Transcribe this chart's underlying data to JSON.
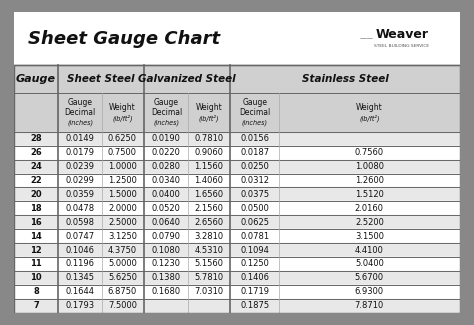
{
  "title": "Sheet Gauge Chart",
  "gauges": [
    28,
    26,
    24,
    22,
    20,
    18,
    16,
    14,
    12,
    11,
    10,
    8,
    7
  ],
  "sheet_steel": {
    "label": "Sheet Steel",
    "decimal": [
      "0.0149",
      "0.0179",
      "0.0239",
      "0.0299",
      "0.0359",
      "0.0478",
      "0.0598",
      "0.0747",
      "0.1046",
      "0.1196",
      "0.1345",
      "0.1644",
      "0.1793"
    ],
    "weight": [
      "0.6250",
      "0.7500",
      "1.0000",
      "1.2500",
      "1.5000",
      "2.0000",
      "2.5000",
      "3.1250",
      "4.3750",
      "5.0000",
      "5.6250",
      "6.8750",
      "7.5000"
    ]
  },
  "galvanized_steel": {
    "label": "Galvanized Steel",
    "decimal": [
      "0.0190",
      "0.0220",
      "0.0280",
      "0.0340",
      "0.0400",
      "0.0520",
      "0.0640",
      "0.0790",
      "0.1080",
      "0.1230",
      "0.1380",
      "0.1680",
      ""
    ],
    "weight": [
      "0.7810",
      "0.9060",
      "1.1560",
      "1.4060",
      "1.6560",
      "2.1560",
      "2.6560",
      "3.2810",
      "4.5310",
      "5.1560",
      "5.7810",
      "7.0310",
      ""
    ]
  },
  "stainless_steel": {
    "label": "Stainless Steel",
    "decimal": [
      "0.0156",
      "0.0187",
      "0.0250",
      "0.0312",
      "0.0375",
      "0.0500",
      "0.0625",
      "0.0781",
      "0.1094",
      "0.1250",
      "0.1406",
      "0.1719",
      "0.1875"
    ],
    "weight": [
      "",
      "0.7560",
      "1.0080",
      "1.2600",
      "1.5120",
      "2.0160",
      "2.5200",
      "3.1500",
      "4.4100",
      "5.0400",
      "5.6700",
      "6.9300",
      "7.8710"
    ]
  },
  "bg_outer": "#888888",
  "bg_white": "#ffffff",
  "header_bg": "#d0d0d0",
  "row_alt": "#e8e8e8",
  "row_white": "#ffffff",
  "border_color": "#666666",
  "text_dark": "#111111",
  "title_fontsize": 13,
  "group_header_fontsize": 7.5,
  "subheader_fontsize": 5.5,
  "data_fontsize": 6.0,
  "gauge_header_fontsize": 8.0
}
